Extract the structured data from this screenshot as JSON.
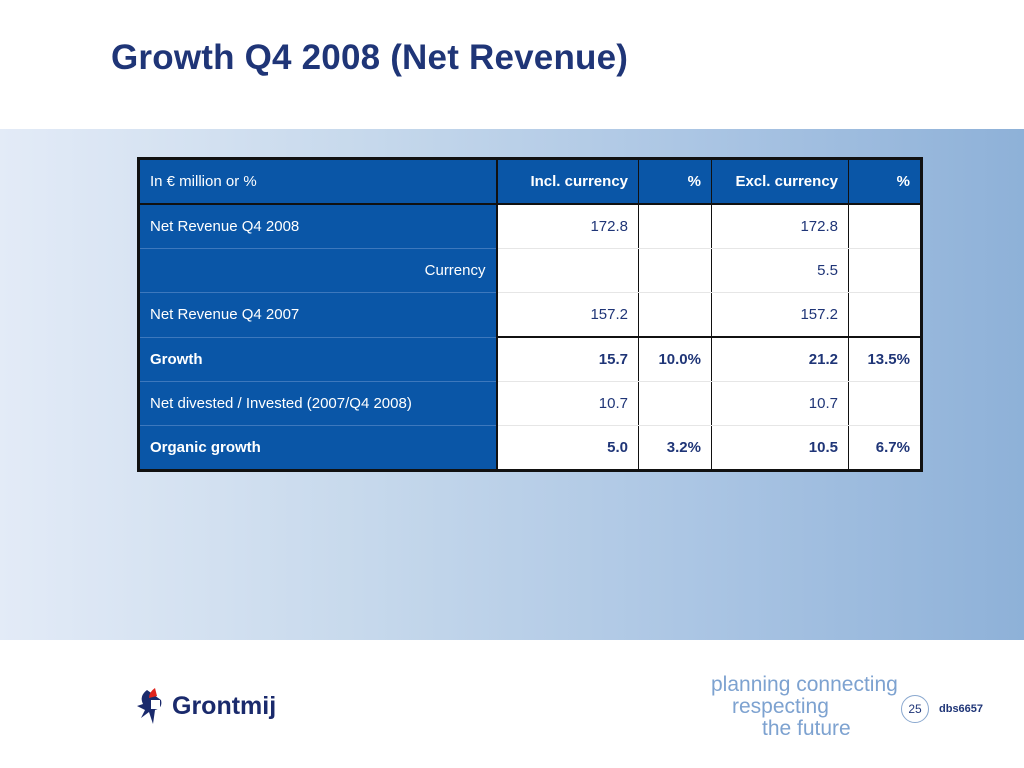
{
  "slide": {
    "title": "Growth Q4 2008 (Net Revenue)",
    "page_number": "25",
    "code": "dbs6657"
  },
  "table": {
    "headers": [
      "In € million or %",
      "Incl. currency",
      "%",
      "Excl. currency",
      "%"
    ],
    "rows": [
      {
        "label": "Net Revenue Q4 2008",
        "cells": [
          "172.8",
          "",
          "172.8",
          ""
        ]
      },
      {
        "label": "Currency",
        "cells": [
          "",
          "",
          "5.5",
          ""
        ]
      },
      {
        "label": "Net Revenue Q4 2007",
        "cells": [
          "157.2",
          "",
          "157.2",
          ""
        ]
      },
      {
        "label": "Growth",
        "cells": [
          "15.7",
          "10.0%",
          "21.2",
          "13.5%"
        ]
      },
      {
        "label": "Net divested / Invested (2007/Q4 2008)",
        "cells": [
          "10.7",
          "",
          "10.7",
          ""
        ]
      },
      {
        "label": "Organic growth",
        "cells": [
          "5.0",
          "3.2%",
          "10.5",
          "6.7%"
        ]
      }
    ]
  },
  "footer": {
    "brand": "Grontmij",
    "tagline": [
      "planning connecting",
      "respecting",
      "the future"
    ]
  },
  "colors": {
    "title": "#1f3577",
    "header_blue": "#0a56a7",
    "band_left": "#e3ebf7",
    "band_right": "#8eb1d8",
    "tagline": "#7da2d0"
  }
}
